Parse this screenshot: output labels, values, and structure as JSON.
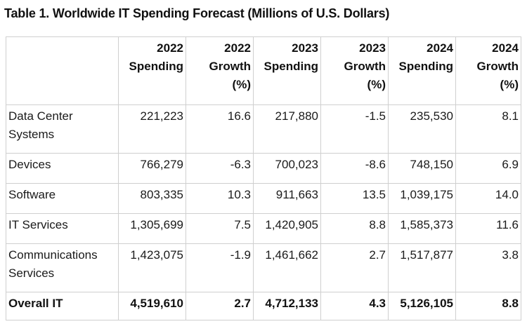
{
  "title": "Table 1. Worldwide IT Spending Forecast (Millions of U.S. Dollars)",
  "columns": [
    "",
    "2022 Spending",
    "2022 Growth (%)",
    "2023 Spending",
    "2023 Growth (%)",
    "2024 Spending",
    "2024 Growth (%)"
  ],
  "rows": [
    {
      "segment": "Data Center Systems",
      "s2022": "221,223",
      "g2022": "16.6",
      "s2023": "217,880",
      "g2023": "-1.5",
      "s2024": "235,530",
      "g2024": "8.1"
    },
    {
      "segment": "Devices",
      "s2022": "766,279",
      "g2022": "-6.3",
      "s2023": "700,023",
      "g2023": "-8.6",
      "s2024": "748,150",
      "g2024": "6.9"
    },
    {
      "segment": "Software",
      "s2022": "803,335",
      "g2022": "10.3",
      "s2023": "911,663",
      "g2023": "13.5",
      "s2024": "1,039,175",
      "g2024": "14.0"
    },
    {
      "segment": "IT Services",
      "s2022": "1,305,699",
      "g2022": "7.5",
      "s2023": "1,420,905",
      "g2023": "8.8",
      "s2024": "1,585,373",
      "g2024": "11.6"
    },
    {
      "segment": "Communications Services",
      "s2022": "1,423,075",
      "g2022": "-1.9",
      "s2023": "1,461,662",
      "g2023": "2.7",
      "s2024": "1,517,877",
      "g2024": "3.8"
    }
  ],
  "total": {
    "segment": "Overall IT",
    "s2022": "4,519,610",
    "g2022": "2.7",
    "s2023": "4,712,133",
    "g2023": "4.3",
    "s2024": "5,126,105",
    "g2024": "8.8"
  }
}
